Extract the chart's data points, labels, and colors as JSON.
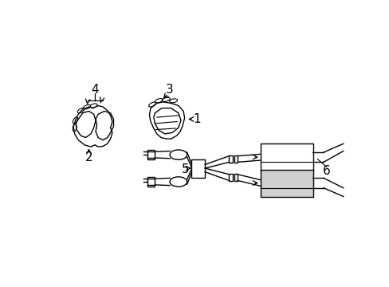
{
  "background_color": "#ffffff",
  "line_color": "#000000",
  "gray_fill": "#d0d0d0",
  "figsize": [
    4.89,
    3.6
  ],
  "dpi": 100,
  "xlim": [
    0,
    489
  ],
  "ylim": [
    0,
    360
  ]
}
